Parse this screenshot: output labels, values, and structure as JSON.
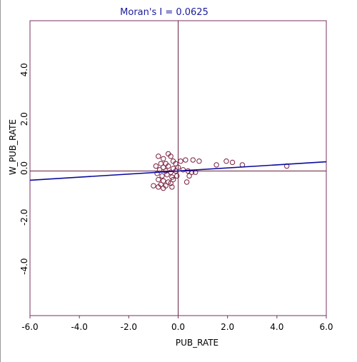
{
  "chart_data": {
    "type": "scatter",
    "title": "Moran's I = 0.0625",
    "xlabel": "PUB_RATE",
    "ylabel": "W_PUB_RATE",
    "xlim": [
      -6.0,
      6.0
    ],
    "ylim": [
      -6.0,
      6.0
    ],
    "x_ticks": [
      "-6.0",
      "-4.0",
      "-2.0",
      "0.0",
      "2.0",
      "4.0",
      "6.0"
    ],
    "y_ticks": [
      "-4.0",
      "-2.0",
      "0.0",
      "2.0",
      "4.0"
    ],
    "grid": false,
    "regression": {
      "slope": 0.0625,
      "intercept": 0.0
    },
    "colors": {
      "frame": "#7a3060",
      "points": "#7a2040",
      "regression": "#0a0aa0",
      "axes_cross": "#6a2040",
      "title": "#1a1aa0",
      "text": "#000000"
    },
    "points": [
      [
        -0.8,
        0.6
      ],
      [
        -0.6,
        0.5
      ],
      [
        -0.4,
        0.7
      ],
      [
        -0.3,
        0.6
      ],
      [
        -0.5,
        0.3
      ],
      [
        -0.7,
        0.3
      ],
      [
        -0.2,
        0.4
      ],
      [
        -0.1,
        0.3
      ],
      [
        0.1,
        0.4
      ],
      [
        0.3,
        0.45
      ],
      [
        -0.9,
        0.2
      ],
      [
        -0.6,
        0.15
      ],
      [
        -0.4,
        0.2
      ],
      [
        -0.2,
        0.1
      ],
      [
        0.0,
        0.15
      ],
      [
        -0.75,
        0.05
      ],
      [
        -0.5,
        0.0
      ],
      [
        -0.3,
        -0.05
      ],
      [
        -0.1,
        0.0
      ],
      [
        0.2,
        0.05
      ],
      [
        -0.85,
        -0.1
      ],
      [
        -0.65,
        -0.2
      ],
      [
        -0.45,
        -0.15
      ],
      [
        -0.25,
        -0.25
      ],
      [
        -0.05,
        -0.2
      ],
      [
        -0.8,
        -0.35
      ],
      [
        -0.6,
        -0.4
      ],
      [
        -0.4,
        -0.45
      ],
      [
        -0.2,
        -0.35
      ],
      [
        -0.7,
        -0.55
      ],
      [
        -0.5,
        -0.6
      ],
      [
        -0.3,
        -0.5
      ],
      [
        -1.0,
        -0.6
      ],
      [
        -0.8,
        -0.65
      ],
      [
        -0.6,
        -0.7
      ],
      [
        -0.25,
        -0.65
      ],
      [
        0.4,
        0.0
      ],
      [
        0.55,
        -0.05
      ],
      [
        0.7,
        -0.05
      ],
      [
        0.45,
        -0.2
      ],
      [
        0.35,
        -0.45
      ],
      [
        0.6,
        0.45
      ],
      [
        0.85,
        0.4
      ],
      [
        1.55,
        0.25
      ],
      [
        1.95,
        0.4
      ],
      [
        2.2,
        0.35
      ],
      [
        2.6,
        0.25
      ],
      [
        4.4,
        0.2
      ]
    ]
  }
}
